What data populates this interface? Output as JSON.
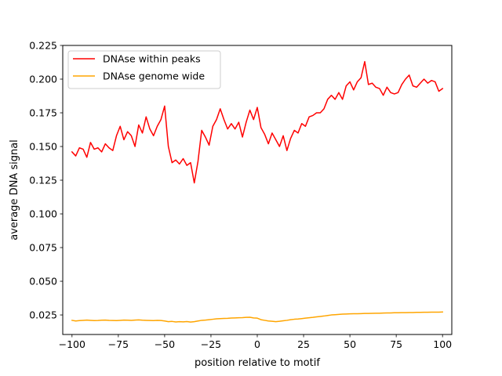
{
  "chart_data": {
    "type": "line",
    "title": "",
    "xlabel": "position relative to motif",
    "ylabel": "average DNA signal",
    "xlim": [
      -105,
      105
    ],
    "ylim": [
      0.0105,
      0.225
    ],
    "xticks": [
      -100,
      -75,
      -50,
      -25,
      0,
      25,
      50,
      75,
      100
    ],
    "xtick_labels": [
      "−100",
      "−75",
      "−50",
      "−25",
      "0",
      "25",
      "50",
      "75",
      "100"
    ],
    "yticks": [
      0.025,
      0.05,
      0.075,
      0.1,
      0.125,
      0.15,
      0.175,
      0.2,
      0.225
    ],
    "ytick_labels": [
      "0.025",
      "0.050",
      "0.075",
      "0.100",
      "0.125",
      "0.150",
      "0.175",
      "0.200",
      "0.225"
    ],
    "grid": false,
    "legend": "top-left",
    "x": [
      -100,
      -98,
      -96,
      -94,
      -92,
      -90,
      -88,
      -86,
      -84,
      -82,
      -80,
      -78,
      -76,
      -74,
      -72,
      -70,
      -68,
      -66,
      -64,
      -62,
      -60,
      -58,
      -56,
      -54,
      -52,
      -50,
      -48,
      -46,
      -44,
      -42,
      -40,
      -38,
      -36,
      -34,
      -32,
      -30,
      -28,
      -26,
      -24,
      -22,
      -20,
      -18,
      -16,
      -14,
      -12,
      -10,
      -8,
      -6,
      -4,
      -2,
      0,
      2,
      4,
      6,
      8,
      10,
      12,
      14,
      16,
      18,
      20,
      22,
      24,
      26,
      28,
      30,
      32,
      34,
      36,
      38,
      40,
      42,
      44,
      46,
      48,
      50,
      52,
      54,
      56,
      58,
      60,
      62,
      64,
      66,
      68,
      70,
      72,
      74,
      76,
      78,
      80,
      82,
      84,
      86,
      88,
      90,
      92,
      94,
      96,
      98,
      100
    ],
    "series": [
      {
        "name": "DNAse within peaks",
        "color": "#ff0000",
        "values": [
          0.146,
          0.143,
          0.149,
          0.148,
          0.142,
          0.153,
          0.148,
          0.149,
          0.146,
          0.152,
          0.149,
          0.147,
          0.158,
          0.165,
          0.155,
          0.161,
          0.158,
          0.15,
          0.166,
          0.16,
          0.172,
          0.163,
          0.158,
          0.165,
          0.17,
          0.18,
          0.15,
          0.138,
          0.14,
          0.137,
          0.141,
          0.136,
          0.138,
          0.123,
          0.139,
          0.162,
          0.157,
          0.151,
          0.165,
          0.17,
          0.178,
          0.17,
          0.163,
          0.167,
          0.163,
          0.168,
          0.157,
          0.168,
          0.177,
          0.17,
          0.179,
          0.164,
          0.159,
          0.152,
          0.16,
          0.155,
          0.15,
          0.158,
          0.147,
          0.156,
          0.162,
          0.16,
          0.167,
          0.165,
          0.172,
          0.173,
          0.175,
          0.175,
          0.178,
          0.185,
          0.188,
          0.185,
          0.19,
          0.185,
          0.195,
          0.198,
          0.192,
          0.198,
          0.201,
          0.213,
          0.196,
          0.197,
          0.194,
          0.193,
          0.188,
          0.194,
          0.19,
          0.189,
          0.19,
          0.196,
          0.2,
          0.203,
          0.195,
          0.194,
          0.197,
          0.2,
          0.197,
          0.199,
          0.198,
          0.191,
          0.193
        ]
      },
      {
        "name": "DNAse genome wide",
        "color": "#ffa500",
        "values": [
          0.021,
          0.0205,
          0.0208,
          0.021,
          0.0212,
          0.021,
          0.0208,
          0.0209,
          0.0211,
          0.0212,
          0.021,
          0.0209,
          0.0208,
          0.021,
          0.0212,
          0.0211,
          0.021,
          0.0212,
          0.0213,
          0.0211,
          0.021,
          0.0209,
          0.0208,
          0.021,
          0.0209,
          0.0205,
          0.02,
          0.0202,
          0.0198,
          0.02,
          0.0199,
          0.0201,
          0.0197,
          0.02,
          0.0205,
          0.021,
          0.0212,
          0.0215,
          0.0218,
          0.0221,
          0.0223,
          0.0224,
          0.0225,
          0.0227,
          0.0228,
          0.0229,
          0.023,
          0.0232,
          0.0233,
          0.0228,
          0.0226,
          0.0215,
          0.021,
          0.0205,
          0.0203,
          0.02,
          0.0203,
          0.0207,
          0.021,
          0.0215,
          0.0218,
          0.022,
          0.0223,
          0.0226,
          0.0229,
          0.0232,
          0.0236,
          0.0239,
          0.0242,
          0.0246,
          0.025,
          0.0252,
          0.0254,
          0.0256,
          0.0257,
          0.0258,
          0.0259,
          0.0259,
          0.026,
          0.0261,
          0.0261,
          0.0262,
          0.0263,
          0.0263,
          0.0264,
          0.0265,
          0.0265,
          0.0266,
          0.0266,
          0.0267,
          0.0267,
          0.0268,
          0.0268,
          0.0269,
          0.0269,
          0.027,
          0.027,
          0.0271,
          0.0271,
          0.0271,
          0.0272
        ]
      }
    ]
  }
}
